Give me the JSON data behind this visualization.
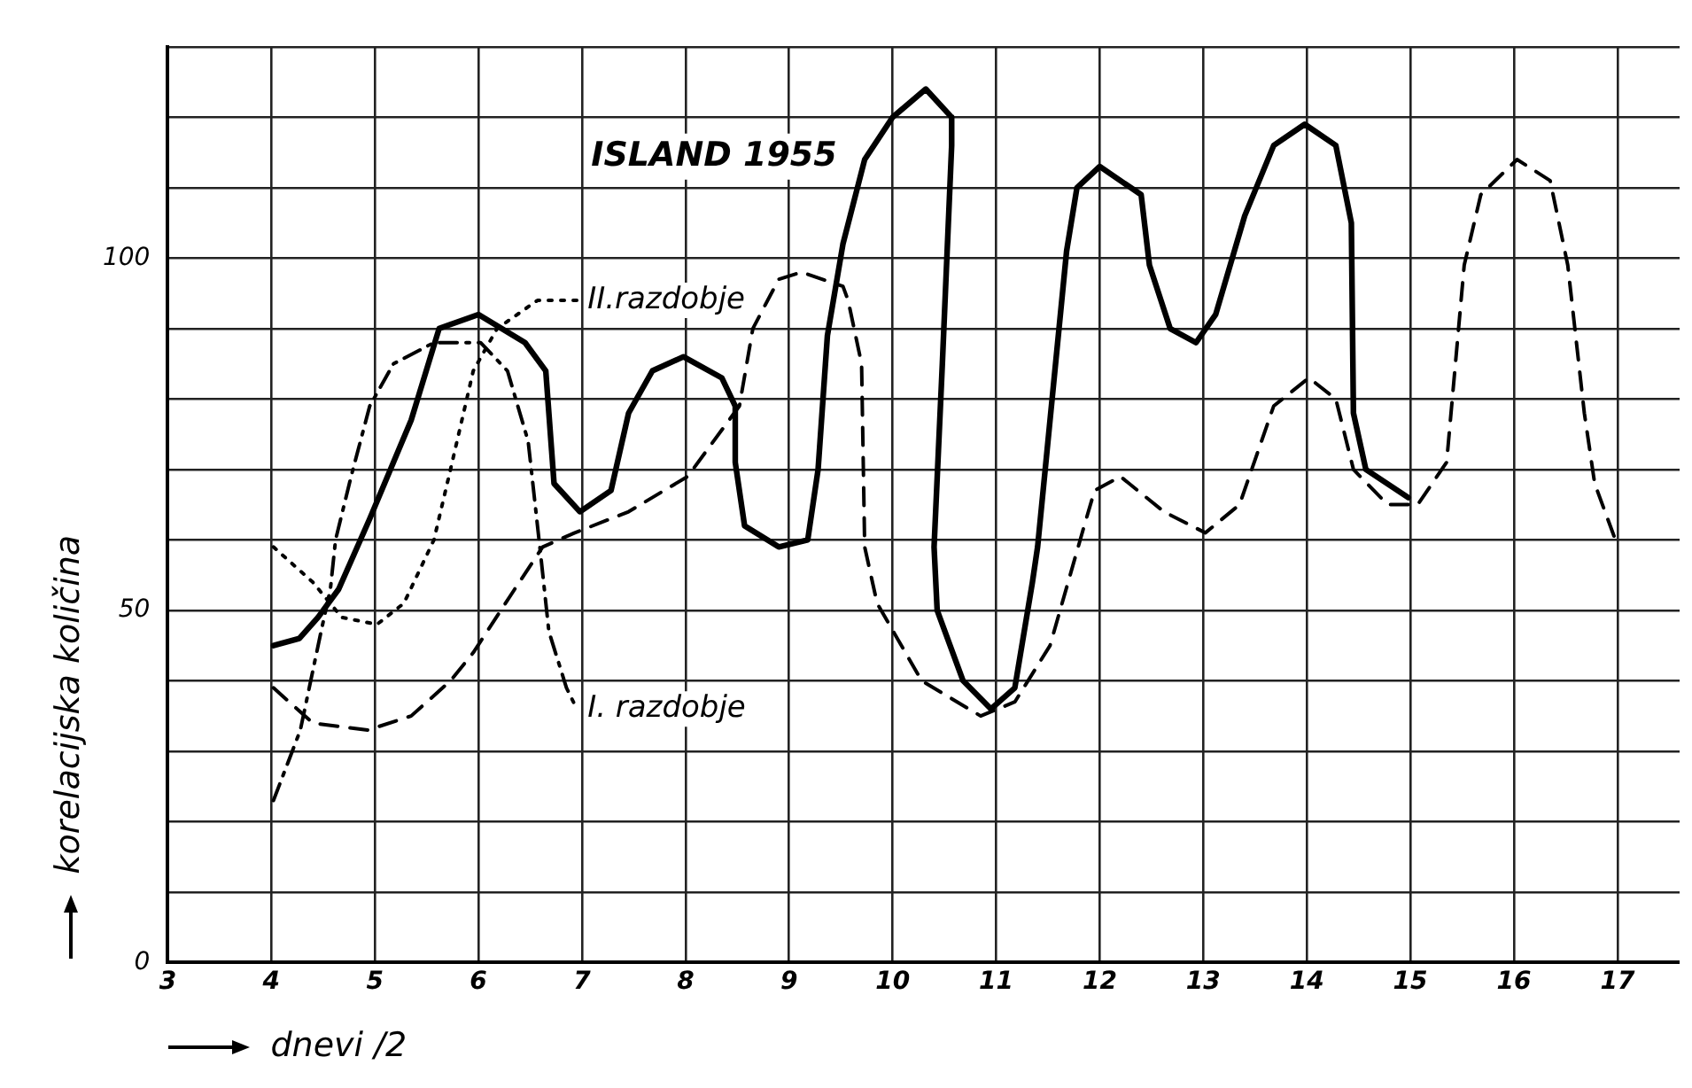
{
  "chart_data": {
    "type": "line",
    "title": "ISLAND 1955",
    "xlabel": "dnevi /2",
    "ylabel": "korelacijska količina",
    "xlim": [
      3,
      17.6
    ],
    "xticks": [
      3,
      4,
      5,
      6,
      7,
      8,
      9,
      10,
      11,
      12,
      13,
      14,
      15,
      16,
      17
    ],
    "ylim": [
      0,
      130
    ],
    "yticks": [
      0,
      {
        "value": 10,
        "label": null
      },
      {
        "value": 20,
        "label": null
      },
      {
        "value": 30,
        "label": null
      },
      {
        "value": 40,
        "label": null
      },
      50,
      {
        "value": 60,
        "label": null
      },
      {
        "value": 70,
        "label": null
      },
      {
        "value": 80,
        "label": null
      },
      {
        "value": 90,
        "label": null
      },
      100,
      {
        "value": 110,
        "label": null
      },
      {
        "value": 120,
        "label": null
      },
      {
        "value": 130,
        "label": null
      }
    ],
    "grid": true,
    "legend": false,
    "series": [
      {
        "color": "#000000",
        "line_style": "solid",
        "x": [
          4.02,
          4.27,
          4.45,
          4.65,
          4.95,
          5.35,
          5.62,
          6.0,
          6.45,
          6.65,
          6.68,
          6.73,
          6.98,
          7.28,
          7.45,
          7.68,
          7.98,
          8.35,
          8.48,
          8.48,
          8.57,
          8.9,
          9.18,
          9.28,
          9.37,
          9.52,
          9.73,
          10.0,
          10.32,
          10.57,
          10.57,
          10.48,
          10.4,
          10.43,
          10.68,
          10.95,
          11.18,
          11.35,
          11.4,
          11.68,
          11.78,
          12.0,
          12.4,
          12.48,
          12.68,
          12.93,
          13.12,
          13.4,
          13.68,
          13.98,
          14.28,
          14.43,
          14.45,
          14.57,
          14.98
        ],
        "values": [
          45,
          46,
          49,
          53,
          63,
          77,
          90,
          92,
          88,
          84,
          78,
          68,
          64,
          67,
          78,
          84,
          86,
          83,
          79,
          71,
          62,
          59,
          60,
          70,
          89,
          102,
          114,
          120,
          124,
          120,
          116,
          85,
          59,
          50,
          40,
          36,
          39,
          54,
          59,
          101,
          110,
          113,
          109,
          99,
          90,
          88,
          92,
          106,
          116,
          119,
          116,
          105,
          78,
          70,
          66
        ]
      },
      {
        "color": "#000000",
        "line_style": "dashed",
        "x": [
          4.02,
          4.4,
          4.93,
          5.35,
          5.73,
          5.95,
          6.35,
          6.62,
          6.93,
          7.45,
          8.02,
          8.52,
          8.65,
          8.9,
          9.12,
          9.52,
          9.57,
          9.7,
          9.73,
          9.85,
          10.28,
          10.85,
          11.18,
          11.52,
          11.85,
          11.95,
          12.2,
          12.62,
          13.02,
          13.35,
          13.68,
          14.02,
          14.28,
          14.45,
          14.78,
          15.07,
          15.35,
          15.52,
          15.68,
          16.03,
          16.35,
          16.52,
          16.68,
          16.78,
          16.98
        ],
        "values": [
          39,
          34,
          33,
          35,
          40,
          44,
          53,
          59,
          61,
          64,
          69,
          79,
          90,
          97,
          98,
          96,
          94,
          85,
          59,
          51,
          40,
          35,
          37,
          45,
          62,
          67,
          69,
          64,
          61,
          65,
          79,
          83,
          80,
          70,
          65,
          65,
          71,
          99,
          109,
          114,
          111,
          99,
          78,
          68,
          60
        ]
      },
      {
        "name": "II.razdobje",
        "color": "#000000",
        "line_style": "dotted",
        "x": [
          4.02,
          4.4,
          4.68,
          5.02,
          5.28,
          5.57,
          5.73,
          5.95,
          6.18,
          6.57,
          6.95
        ],
        "values": [
          59,
          54,
          49,
          48,
          51,
          60,
          70,
          84,
          90,
          94,
          94
        ]
      },
      {
        "name": "I. razdobje",
        "color": "#000000",
        "line_style": "dashdot",
        "x": [
          4.02,
          4.28,
          4.48,
          4.57,
          4.62,
          4.77,
          4.95,
          5.18,
          5.57,
          6.02,
          6.28,
          6.48,
          6.57,
          6.6,
          6.68,
          6.85,
          6.95
        ],
        "values": [
          23,
          33,
          47,
          53,
          60,
          69,
          79,
          85,
          88,
          88,
          84,
          74,
          62,
          58,
          47,
          39,
          36
        ]
      }
    ]
  }
}
